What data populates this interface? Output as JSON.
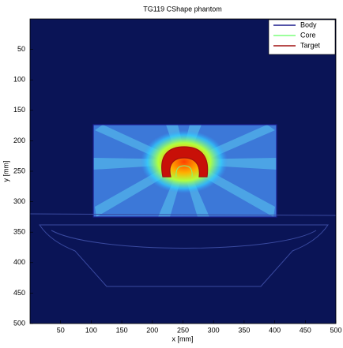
{
  "chart_data": {
    "type": "image",
    "title": "TG119 CShape phantom",
    "xlabel": "x [mm]",
    "ylabel": "y [mm]",
    "xlim": [
      0,
      500
    ],
    "ylim": [
      500,
      0
    ],
    "xticks": [
      50,
      100,
      150,
      200,
      250,
      300,
      350,
      400,
      450,
      500
    ],
    "yticks": [
      50,
      100,
      150,
      200,
      250,
      300,
      350,
      400,
      450,
      500
    ],
    "legend": "upper right",
    "series": [
      {
        "name": "Body",
        "color": "#1a1a8c"
      },
      {
        "name": "Core",
        "color": "#7cff7c"
      },
      {
        "name": "Target",
        "color": "#a01010"
      }
    ]
  }
}
